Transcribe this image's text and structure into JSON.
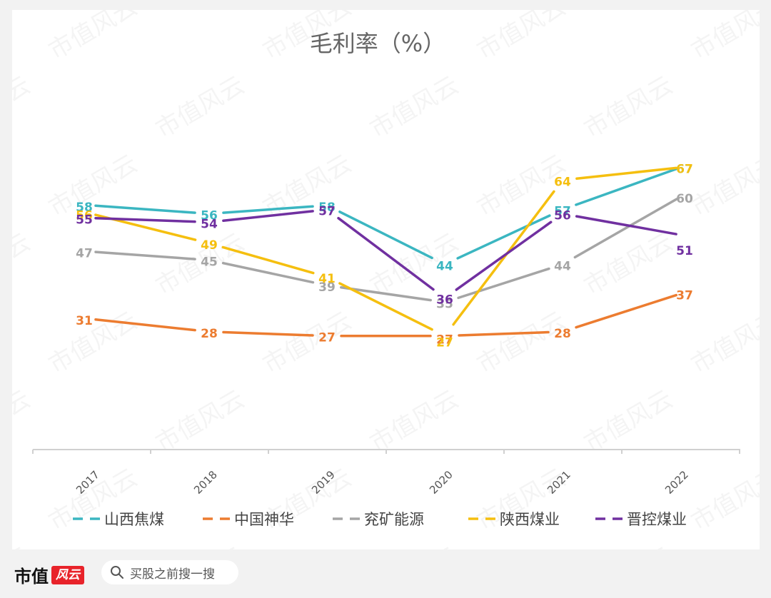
{
  "chart_data": {
    "type": "line",
    "title": "毛利率（%）",
    "categories": [
      "2017",
      "2018",
      "2019",
      "2020",
      "2021",
      "2022"
    ],
    "legend_position": "bottom",
    "grid": false,
    "series": [
      {
        "name": "山西焦煤",
        "color": "#3bb6c1",
        "values": [
          58,
          56,
          58,
          44,
          57,
          67
        ]
      },
      {
        "name": "中国神华",
        "color": "#ec7c30",
        "values": [
          31,
          28,
          27,
          27,
          28,
          37
        ]
      },
      {
        "name": "兖矿能源",
        "color": "#a5a5a5",
        "values": [
          47,
          45,
          39,
          35,
          44,
          60
        ]
      },
      {
        "name": "陕西煤业",
        "color": "#f5bf0f",
        "values": [
          56,
          49,
          41,
          27,
          64,
          67
        ]
      },
      {
        "name": "晋控煤业",
        "color": "#7030a0",
        "values": [
          55,
          54,
          57,
          36,
          56,
          51
        ]
      }
    ]
  },
  "watermark": "市值风云",
  "footer": {
    "brand": "市值",
    "logo_text": "风云",
    "search_icon": "search-icon",
    "search_text": "买股之前搜一搜"
  }
}
